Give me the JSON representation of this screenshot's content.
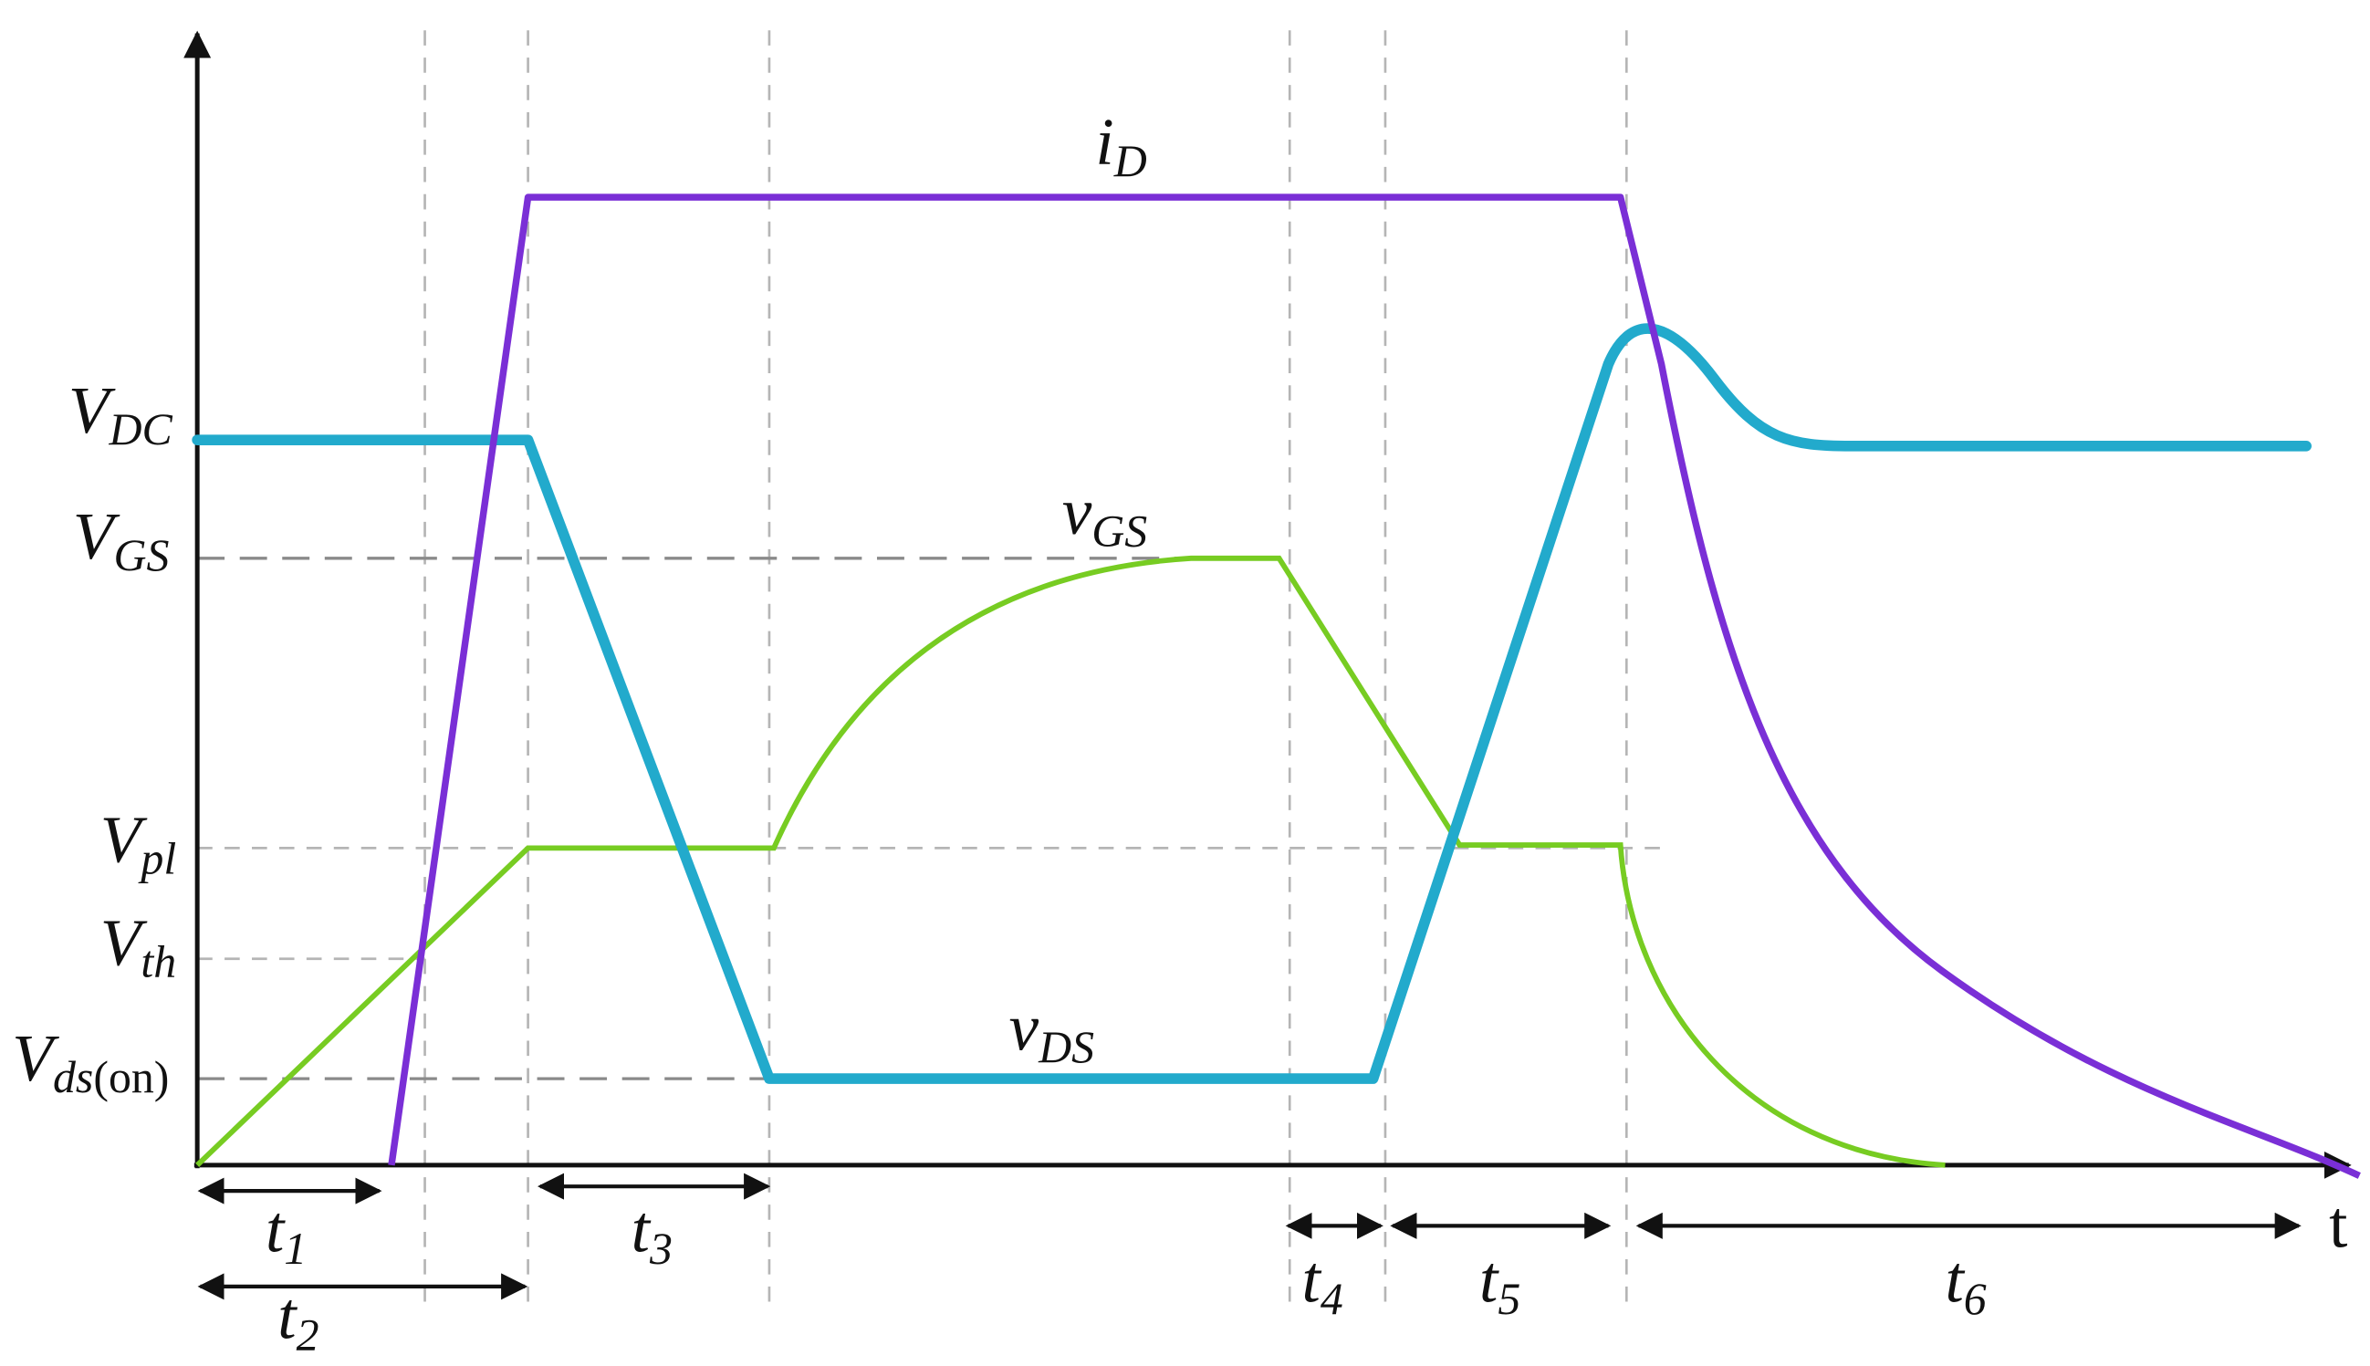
{
  "axis": {
    "time_label": "t"
  },
  "y_labels": [
    {
      "main": "V",
      "sub": "DC"
    },
    {
      "main": "V",
      "sub": "GS"
    },
    {
      "main": "V",
      "sub": "pl"
    },
    {
      "main": "V",
      "sub": "th"
    },
    {
      "main": "V",
      "sub": "ds",
      "suffix": "(on)"
    }
  ],
  "curve_labels": [
    {
      "main": "i",
      "sub": "D"
    },
    {
      "main": "v",
      "sub": "GS"
    },
    {
      "main": "v",
      "sub": "DS"
    }
  ],
  "intervals": [
    {
      "main": "t",
      "sub": "1"
    },
    {
      "main": "t",
      "sub": "2"
    },
    {
      "main": "t",
      "sub": "3"
    },
    {
      "main": "t",
      "sub": "4"
    },
    {
      "main": "t",
      "sub": "5"
    },
    {
      "main": "t",
      "sub": "6"
    }
  ]
}
